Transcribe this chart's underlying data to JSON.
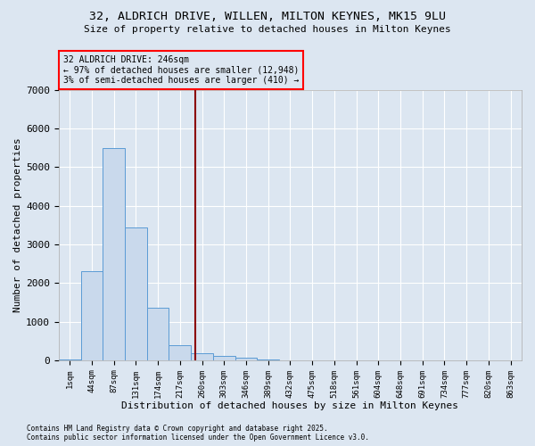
{
  "title_line1": "32, ALDRICH DRIVE, WILLEN, MILTON KEYNES, MK15 9LU",
  "title_line2": "Size of property relative to detached houses in Milton Keynes",
  "xlabel": "Distribution of detached houses by size in Milton Keynes",
  "ylabel": "Number of detached properties",
  "categories": [
    "1sqm",
    "44sqm",
    "87sqm",
    "131sqm",
    "174sqm",
    "217sqm",
    "260sqm",
    "303sqm",
    "346sqm",
    "389sqm",
    "432sqm",
    "475sqm",
    "518sqm",
    "561sqm",
    "604sqm",
    "648sqm",
    "691sqm",
    "734sqm",
    "777sqm",
    "820sqm",
    "863sqm"
  ],
  "values": [
    20,
    2300,
    5500,
    3450,
    1350,
    400,
    180,
    110,
    55,
    10,
    0,
    0,
    0,
    0,
    0,
    0,
    0,
    0,
    0,
    0,
    0
  ],
  "bar_color": "#c9d9ec",
  "bar_edge_color": "#5b9bd5",
  "annotation_line1": "32 ALDRICH DRIVE: 246sqm",
  "annotation_line2": "← 97% of detached houses are smaller (12,948)",
  "annotation_line3": "3% of semi-detached houses are larger (410) →",
  "vline_color": "#8b0000",
  "ylim": [
    0,
    7000
  ],
  "yticks": [
    0,
    1000,
    2000,
    3000,
    4000,
    5000,
    6000,
    7000
  ],
  "background_color": "#dce6f1",
  "grid_color": "#ffffff",
  "footer_line1": "Contains HM Land Registry data © Crown copyright and database right 2025.",
  "footer_line2": "Contains public sector information licensed under the Open Government Licence v3.0."
}
